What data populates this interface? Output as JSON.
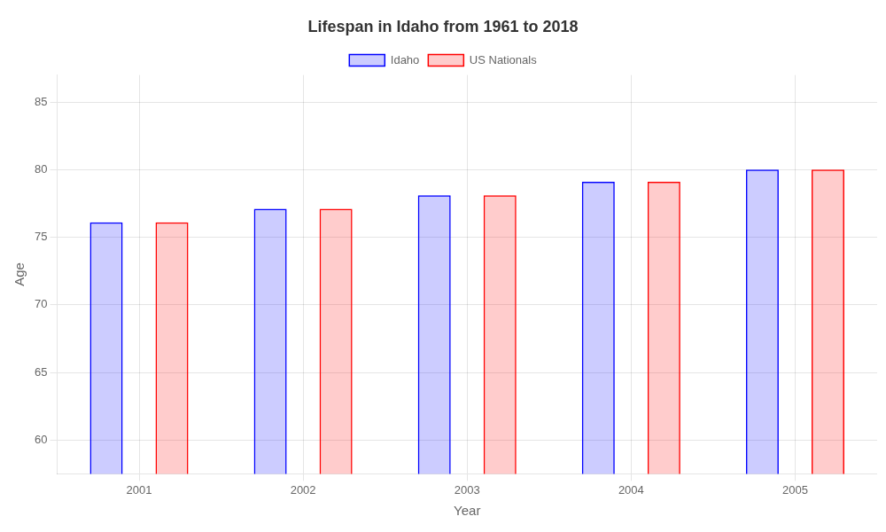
{
  "chart_data": {
    "type": "bar",
    "title": "Lifespan in Idaho from 1961 to 2018",
    "x_label": "Year",
    "y_label": "Age",
    "categories": [
      "2001",
      "2002",
      "2003",
      "2004",
      "2005"
    ],
    "series": [
      {
        "name": "Idaho",
        "color": "#0000ff",
        "values": [
          76.1,
          77.1,
          78.1,
          79.1,
          80.0
        ]
      },
      {
        "name": "US Nationals",
        "color": "#ff0000",
        "values": [
          76.1,
          77.1,
          78.1,
          79.1,
          80.0
        ]
      }
    ],
    "ylim": [
      57.5,
      87
    ],
    "yticks": [
      60,
      65,
      70,
      75,
      80,
      85
    ],
    "grid": true,
    "legend": "top"
  }
}
